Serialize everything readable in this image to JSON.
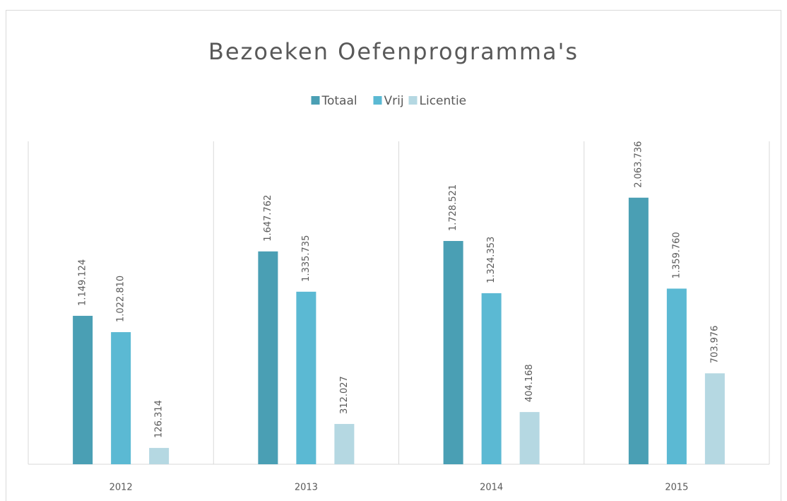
{
  "chart_data": {
    "type": "bar",
    "title": "Bezoeken Oefenprogramma's",
    "categories": [
      "2012",
      "2013",
      "2014",
      "2015"
    ],
    "series": [
      {
        "name": "Totaal",
        "color": "#4a9fb4",
        "values": [
          1149124,
          1647762,
          1728521,
          2063736
        ],
        "value_labels": [
          "1.149.124",
          "1.647.762",
          "1.728.521",
          "2.063.736"
        ]
      },
      {
        "name": "Vrij",
        "color": "#5bb9d3",
        "values": [
          1022810,
          1335735,
          1324353,
          1359760
        ],
        "value_labels": [
          "1.022.810",
          "1.335.735",
          "1.324.353",
          "1.359.760"
        ]
      },
      {
        "name": "Licentie",
        "color": "#b5d8e2",
        "values": [
          126314,
          312027,
          404168,
          703976
        ],
        "value_labels": [
          "126.314",
          "312.027",
          "404.168",
          "703.976"
        ]
      }
    ],
    "ylim": [
      0,
      2500000
    ],
    "legend": "top"
  }
}
